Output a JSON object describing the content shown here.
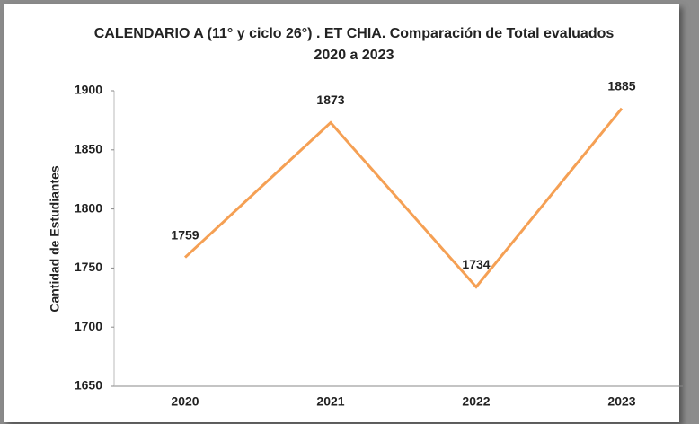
{
  "chart_data": {
    "type": "line",
    "title": "CALENDARIO  A (11° y ciclo  26°) . ET CHIA. Comparación de Total evaluados  2020 a 2023",
    "y_label": "Cantidad de Estudiantes",
    "categories": [
      "2020",
      "2021",
      "2022",
      "2023"
    ],
    "series": [
      {
        "name": "Total evaluados",
        "color": "#f5a054",
        "values": [
          1759,
          1873,
          1734,
          1885
        ]
      }
    ],
    "ylim": [
      1650,
      1900
    ],
    "yticks": [
      1650,
      1700,
      1750,
      1800,
      1850,
      1900
    ],
    "grid": false,
    "data_labels": true
  }
}
